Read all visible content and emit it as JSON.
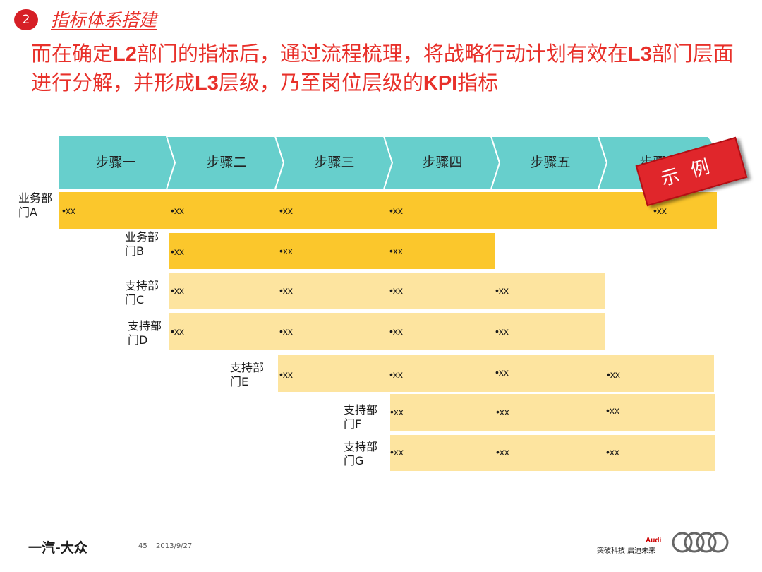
{
  "header": {
    "section_number": "2",
    "section_title": "指标体系搭建",
    "headline_parts": [
      "而在确定",
      "L2",
      "部门的指标后，通过流程梳理，将战略行动计划有效在",
      "L3",
      "部门层面进行分解，并形成",
      "L3",
      "层级，乃至岗位层级的",
      "KPI",
      "指标"
    ]
  },
  "steps": [
    "步骤一",
    "步骤二",
    "步骤三",
    "步骤四",
    "步骤五",
    "步骤六"
  ],
  "stamp_label": "示例",
  "departments": [
    {
      "label_line1": "业务部",
      "label_line2": "门A",
      "cells": [
        "•xx",
        "•xx",
        "•xx",
        "•xx",
        "•xx"
      ]
    },
    {
      "label_line1": "业务部",
      "label_line2": "门B",
      "cells": [
        "•xx",
        "•xx",
        "•xx"
      ]
    },
    {
      "label_line1": "支持部",
      "label_line2": "门C",
      "cells": [
        "•xx",
        "•xx",
        "•xx",
        "•xx"
      ]
    },
    {
      "label_line1": "支持部",
      "label_line2": "门D",
      "cells": [
        "•xx",
        "•xx",
        "•xx",
        "•xx"
      ]
    },
    {
      "label_line1": "支持部",
      "label_line2": "门E",
      "cells": [
        "•xx",
        "•xx",
        "•xx",
        "•xx"
      ]
    },
    {
      "label_line1": "支持部",
      "label_line2": "门F",
      "cells": [
        "•xx",
        "•xx",
        "•xx"
      ]
    },
    {
      "label_line1": "支持部",
      "label_line2": "门G",
      "cells": [
        "•xx",
        "•xx",
        "•xx"
      ]
    }
  ],
  "footer": {
    "company_logo": "一汽-大众",
    "page_number": "45",
    "date": "2013/9/27",
    "brand": "Audi",
    "slogan": "突破科技 启迪未来"
  },
  "colors": {
    "accent_red": "#e8302a",
    "step_teal": "#67cfcc",
    "row_dark": "#fbc72c",
    "row_light": "#fde49f"
  }
}
